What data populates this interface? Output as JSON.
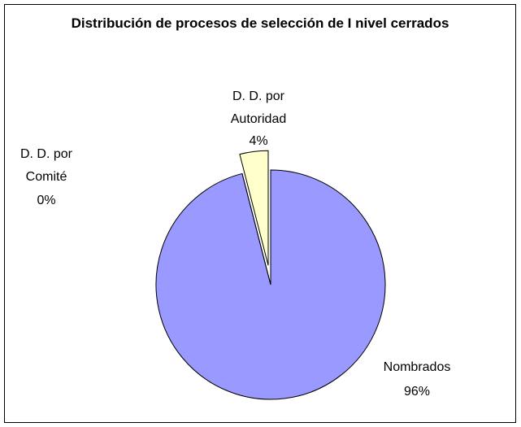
{
  "chart_data": {
    "type": "pie",
    "title": "Distribución de procesos de selección de I nivel cerrados",
    "categories": [
      "Nombrados",
      "D. D. por Comité",
      "D. D. por Autoridad"
    ],
    "values": [
      96,
      0,
      4
    ],
    "value_labels": [
      "96%",
      "0%",
      "4%"
    ],
    "colors": [
      "#9999ff",
      "#333399",
      "#ffffcc"
    ]
  }
}
